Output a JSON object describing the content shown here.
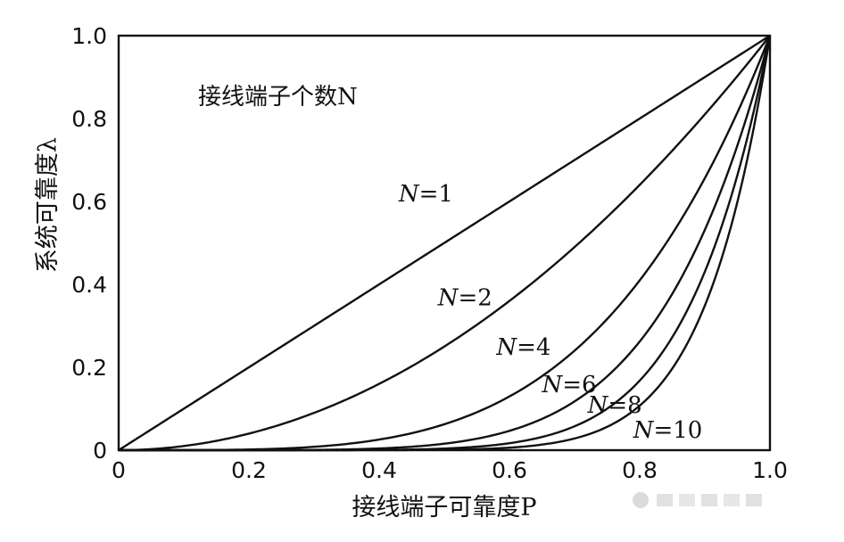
{
  "chart_data": {
    "type": "line",
    "title": "",
    "annotation": "接线端子个数N",
    "xlabel": "接线端子可靠度P",
    "ylabel": "系统可靠度λ",
    "xlim": [
      0,
      1
    ],
    "ylim": [
      0,
      1
    ],
    "x_ticks": [
      "0",
      "0.2",
      "0.4",
      "0.6",
      "0.8",
      "1.0"
    ],
    "y_ticks": [
      "0",
      "0.2",
      "0.4",
      "0.6",
      "0.8",
      "1.0"
    ],
    "grid": false,
    "series": [
      {
        "name": "N=1",
        "exponent": 1,
        "x": [
          0,
          0.1,
          0.2,
          0.3,
          0.4,
          0.5,
          0.6,
          0.7,
          0.8,
          0.9,
          1.0
        ],
        "y": [
          0,
          0.1,
          0.2,
          0.3,
          0.4,
          0.5,
          0.6,
          0.7,
          0.8,
          0.9,
          1.0
        ]
      },
      {
        "name": "N=2",
        "exponent": 2,
        "x": [
          0,
          0.1,
          0.2,
          0.3,
          0.4,
          0.5,
          0.6,
          0.7,
          0.8,
          0.9,
          1.0
        ],
        "y": [
          0,
          0.01,
          0.04,
          0.09,
          0.16,
          0.25,
          0.36,
          0.49,
          0.64,
          0.81,
          1.0
        ]
      },
      {
        "name": "N=4",
        "exponent": 4,
        "x": [
          0,
          0.3,
          0.4,
          0.5,
          0.6,
          0.7,
          0.8,
          0.9,
          0.95,
          1.0
        ],
        "y": [
          0,
          0.008,
          0.026,
          0.063,
          0.13,
          0.24,
          0.41,
          0.66,
          0.81,
          1.0
        ]
      },
      {
        "name": "N=6",
        "exponent": 6,
        "x": [
          0,
          0.4,
          0.5,
          0.6,
          0.7,
          0.8,
          0.9,
          0.95,
          1.0
        ],
        "y": [
          0,
          0.004,
          0.016,
          0.047,
          0.118,
          0.262,
          0.531,
          0.735,
          1.0
        ]
      },
      {
        "name": "N=8",
        "exponent": 8,
        "x": [
          0,
          0.5,
          0.6,
          0.7,
          0.8,
          0.85,
          0.9,
          0.95,
          1.0
        ],
        "y": [
          0,
          0.004,
          0.017,
          0.058,
          0.168,
          0.272,
          0.43,
          0.663,
          1.0
        ]
      },
      {
        "name": "N=10",
        "exponent": 10,
        "x": [
          0,
          0.55,
          0.6,
          0.7,
          0.8,
          0.85,
          0.9,
          0.95,
          1.0
        ],
        "y": [
          0,
          0.003,
          0.006,
          0.028,
          0.107,
          0.197,
          0.349,
          0.599,
          1.0
        ]
      }
    ],
    "curve_labels": [
      {
        "text": "N=1",
        "x": 0.43,
        "y": 0.6
      },
      {
        "text": "N=2",
        "x": 0.49,
        "y": 0.35
      },
      {
        "text": "N=4",
        "x": 0.58,
        "y": 0.23
      },
      {
        "text": "N=6",
        "x": 0.65,
        "y": 0.14
      },
      {
        "text": "N=8",
        "x": 0.72,
        "y": 0.09
      },
      {
        "text": "N=10",
        "x": 0.79,
        "y": 0.03
      }
    ]
  }
}
